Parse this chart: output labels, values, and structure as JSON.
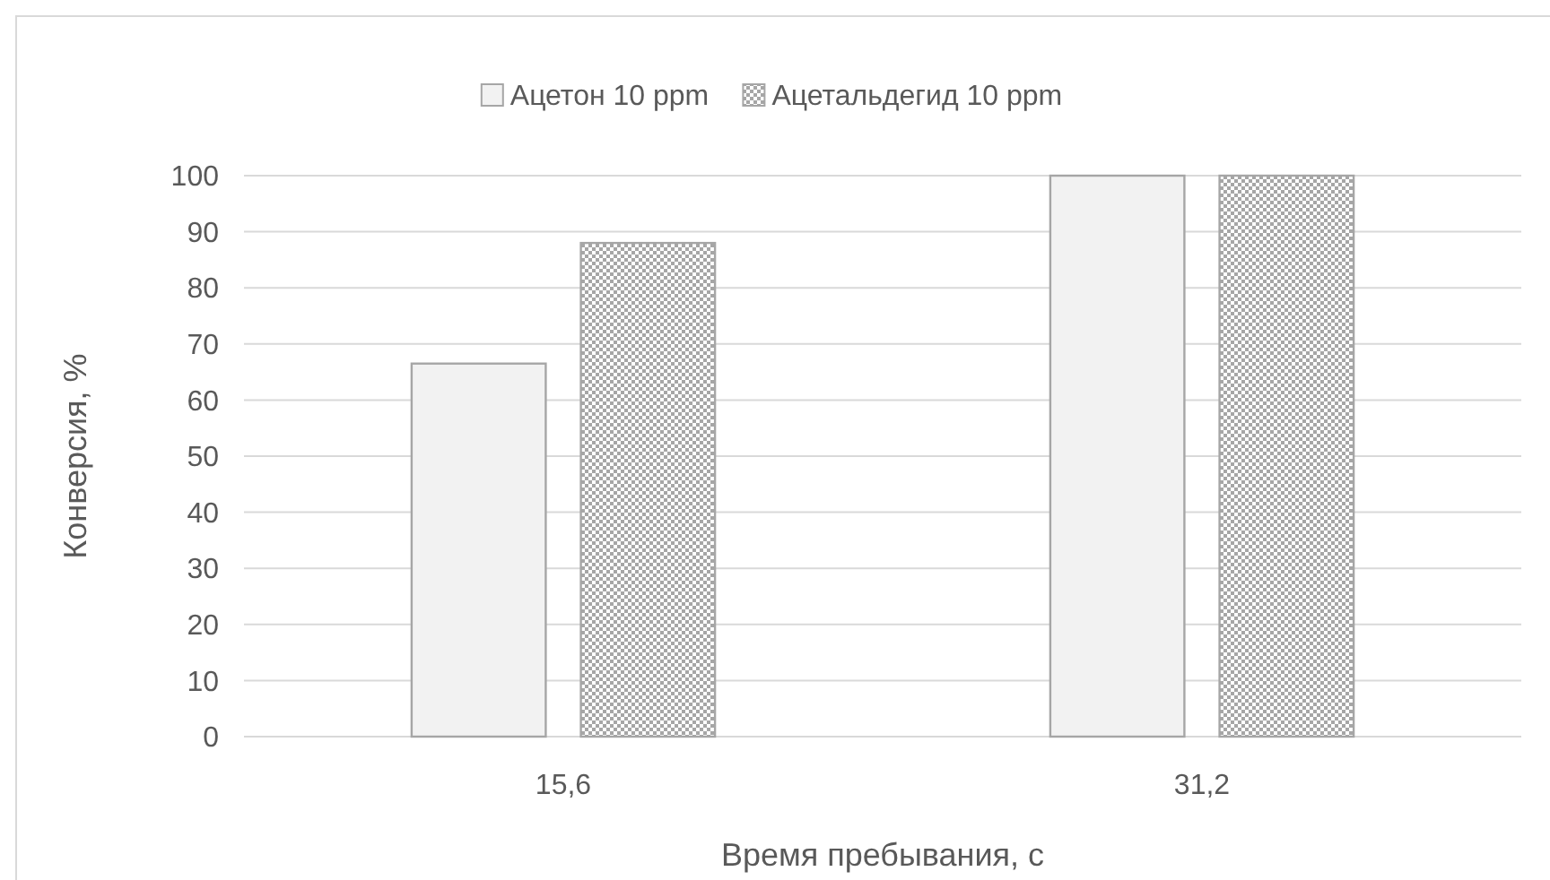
{
  "chart_data": {
    "type": "bar",
    "categories": [
      "15,6",
      "31,2"
    ],
    "xlabel": "Время пребывания, с",
    "ylabel": "Конверсия, %",
    "series": [
      {
        "name": "Ацетон 10 ppm",
        "color": "#f2f2f2",
        "values": [
          66.5,
          100
        ]
      },
      {
        "name": "Ацетальдегид 10 ppm",
        "color": "#a6a6a6",
        "values": [
          88,
          100
        ]
      }
    ],
    "ylim": [
      0,
      100
    ],
    "yticks": [
      0,
      10,
      20,
      30,
      40,
      50,
      60,
      70,
      80,
      90,
      100
    ],
    "grid": "y",
    "legend": "top"
  }
}
